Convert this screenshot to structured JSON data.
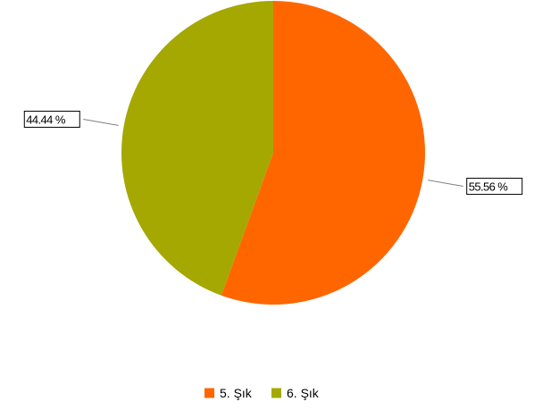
{
  "chart_data": {
    "type": "pie",
    "title": "",
    "categories": [
      "5. Şık",
      "6. Şık"
    ],
    "values": [
      55.56,
      44.44
    ],
    "value_unit": "%",
    "data_labels": [
      "55.56 %",
      "44.44 %"
    ],
    "colors": [
      "#ff6600",
      "#a5a800"
    ],
    "start_angle_deg": 0,
    "direction": "clockwise",
    "legend": {
      "position": "bottom",
      "entries": [
        "5. Şık",
        "6. Şık"
      ]
    }
  }
}
